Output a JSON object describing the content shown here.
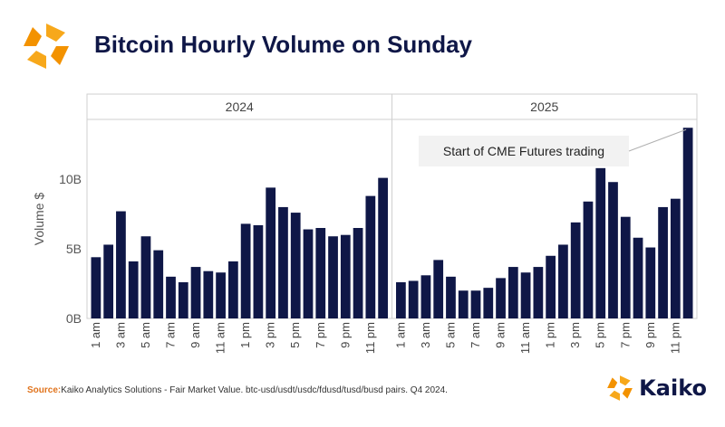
{
  "header": {
    "title": "Bitcoin Hourly Volume on Sunday"
  },
  "footer": {
    "source_label": "Source:",
    "source_text": "Kaiko Analytics Solutions - Fair Market Value. btc-usd/usdt/usdc/fdusd/tusd/busd pairs. Q4 2024.",
    "brand_name": "Kaiko",
    "logo_icon": "kaiko-logo-icon"
  },
  "colors": {
    "bar": "#0f1747",
    "accent": "#f39200",
    "brand": "#0f1747"
  },
  "chart_data": {
    "type": "bar",
    "ylabel": "Volume $",
    "ylim": [
      0,
      14.3
    ],
    "yticks": [
      0,
      5,
      10
    ],
    "ytick_labels": [
      "0B",
      "5B",
      "10B"
    ],
    "gridlines": false,
    "panels": [
      {
        "label": "2024",
        "values": [
          4.4,
          5.3,
          7.7,
          4.1,
          5.9,
          4.9,
          3.0,
          2.6,
          3.7,
          3.4,
          3.3,
          4.1,
          6.8,
          6.7,
          9.4,
          8.0,
          7.6,
          6.4,
          6.5,
          5.9,
          6.0,
          6.5,
          8.8,
          10.1
        ]
      },
      {
        "label": "2025",
        "values": [
          2.6,
          2.7,
          3.1,
          4.2,
          3.0,
          2.0,
          2.0,
          2.2,
          2.9,
          3.7,
          3.3,
          3.7,
          4.5,
          5.3,
          6.9,
          8.4,
          10.8,
          9.8,
          7.3,
          5.8,
          5.1,
          8.0,
          8.6,
          13.7
        ]
      }
    ],
    "tick_labels": [
      "1 am",
      "3 am",
      "5 am",
      "7 am",
      "9 am",
      "11 am",
      "1 pm",
      "3 pm",
      "5 pm",
      "7 pm",
      "9 pm",
      "11 pm"
    ],
    "annotation": {
      "text": "Start of CME Futures trading",
      "panel": 1,
      "bar_index": 23
    }
  }
}
